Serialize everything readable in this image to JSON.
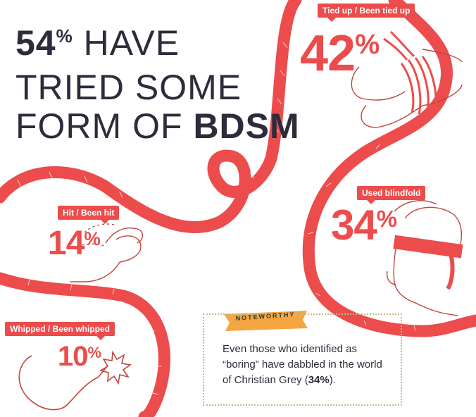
{
  "headline": {
    "line1_value": "54",
    "line1_pct": "%",
    "line1_rest": "HAVE",
    "line2": "TRIED SOME",
    "line3_plain": "FORM OF",
    "line3_bold": "BDSM"
  },
  "stats": {
    "tied": {
      "label": "Tied up / Been tied up",
      "value": "42",
      "pct": "%"
    },
    "blindfold": {
      "label": "Used blindfold",
      "value": "34",
      "pct": "%"
    },
    "hit": {
      "label": "Hit / Been hit",
      "value": "14",
      "pct": "%"
    },
    "whipped": {
      "label": "Whipped / Been whipped",
      "value": "10",
      "pct": "%"
    }
  },
  "note": {
    "tag": "NOTEWORTHY",
    "text_before": "Even those who identified as “boring” have dabbled in the world of Christian Grey (",
    "text_bold": "34%",
    "text_after": ")."
  },
  "colors": {
    "accent": "#ec4c4b",
    "ink": "#2e2b3b",
    "tag": "#f4a640",
    "dotted": "#c7b98b"
  }
}
